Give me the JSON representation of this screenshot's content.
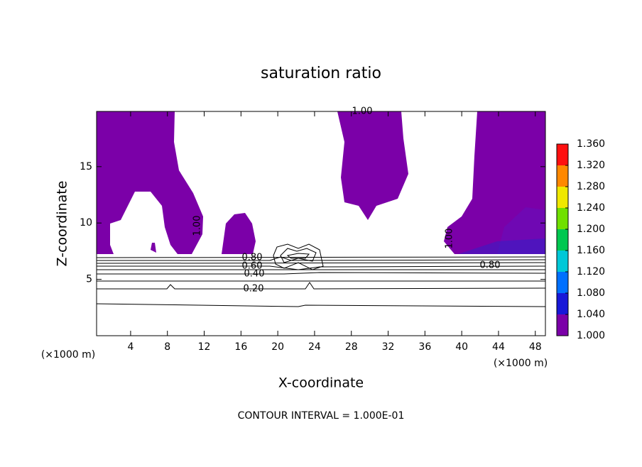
{
  "chart_data": {
    "type": "contour",
    "title": "saturation ratio",
    "x_label": "X-coordinate",
    "y_label": "Z-coordinate",
    "x_unit_label": "(×1000 m)",
    "xlim": [
      0.3,
      49.1
    ],
    "xticks": [
      4,
      8,
      12,
      16,
      20,
      24,
      28,
      32,
      36,
      40,
      44,
      48
    ],
    "ylim": [
      0,
      19.9
    ],
    "yticks": [
      5,
      10,
      15
    ],
    "fill_color": "#7b00a8",
    "colorbar_lim": [
      1.0,
      1.36
    ],
    "colorbar_ticks": [
      {
        "value": 1.0,
        "label": "1.000"
      },
      {
        "value": 1.04,
        "label": "1.040"
      },
      {
        "value": 1.08,
        "label": "1.080"
      },
      {
        "value": 1.12,
        "label": "1.120"
      },
      {
        "value": 1.16,
        "label": "1.160"
      },
      {
        "value": 1.2,
        "label": "1.200"
      },
      {
        "value": 1.24,
        "label": "1.240"
      },
      {
        "value": 1.28,
        "label": "1.280"
      },
      {
        "value": 1.32,
        "label": "1.320"
      },
      {
        "value": 1.36,
        "label": "1.360"
      }
    ],
    "colorbar_colors": [
      "#7b00a8",
      "#1818d8",
      "#0070ff",
      "#00c8d8",
      "#00c850",
      "#70e000",
      "#f0e800",
      "#ff8800",
      "#ff1010"
    ],
    "contour_labels": [
      "1.00",
      "1.00",
      "1.00",
      "0.80",
      "0.60",
      "0.40",
      "0.20",
      "0.80"
    ],
    "contour_interval": "CONTOUR INTERVAL = 1.000E-01"
  }
}
